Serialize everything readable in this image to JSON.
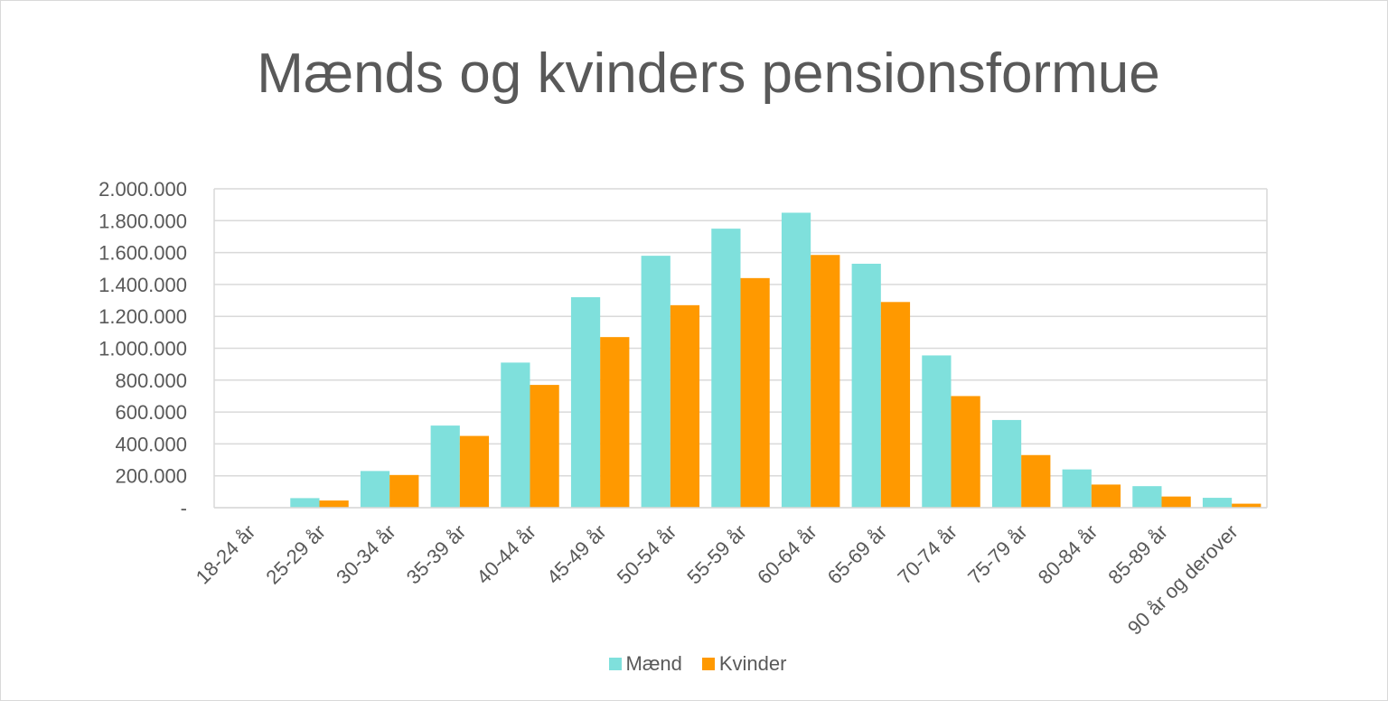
{
  "chart_data": {
    "type": "bar",
    "title": "Mænds og kvinders pensionsformue",
    "xlabel": "",
    "ylabel": "",
    "categories": [
      "18-24 år",
      "25-29 år",
      "30-34 år",
      "35-39 år",
      "40-44 år",
      "45-49 år",
      "50-54 år",
      "55-59 år",
      "60-64 år",
      "65-69 år",
      "70-74 år",
      "75-79 år",
      "80-84 år",
      "85-89 år",
      "90 år og derover"
    ],
    "series": [
      {
        "name": "Mænd",
        "color": "#7fe0dc",
        "values": [
          2000,
          60000,
          230000,
          515000,
          910000,
          1320000,
          1580000,
          1750000,
          1850000,
          1530000,
          955000,
          550000,
          240000,
          135000,
          62000
        ]
      },
      {
        "name": "Kvinder",
        "color": "#ff9900",
        "values": [
          1500,
          45000,
          205000,
          450000,
          770000,
          1070000,
          1270000,
          1440000,
          1585000,
          1290000,
          700000,
          330000,
          145000,
          70000,
          25000
        ]
      }
    ],
    "ylim": [
      0,
      2000000
    ],
    "yticks": [
      0,
      200000,
      400000,
      600000,
      800000,
      1000000,
      1200000,
      1400000,
      1600000,
      1800000,
      2000000
    ],
    "ytick_labels": [
      "-",
      "200.000",
      "400.000",
      "600.000",
      "800.000",
      "1.000.000",
      "1.200.000",
      "1.400.000",
      "1.600.000",
      "1.800.000",
      "2.000.000"
    ],
    "grid": true,
    "legend_position": "bottom"
  },
  "colors": {
    "text": "#595959",
    "grid": "#d9d9d9"
  }
}
